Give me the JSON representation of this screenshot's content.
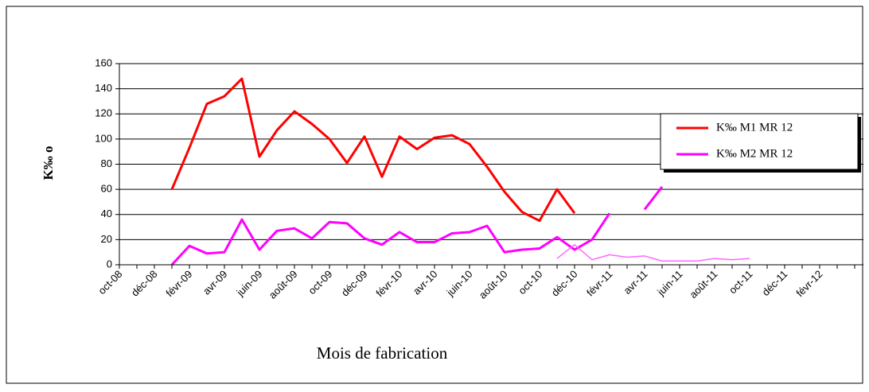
{
  "chart_data": {
    "type": "line",
    "y_label": "K‰ o",
    "x_label": "Mois de fabrication",
    "categories": [
      "oct-08",
      null,
      "déc-08",
      null,
      "févr-09",
      null,
      "avr-09",
      null,
      "juin-09",
      null,
      "août-09",
      null,
      "oct-09",
      null,
      "déc-09",
      null,
      "févr-10",
      null,
      "avr-10",
      null,
      "juin-10",
      null,
      "août-10",
      null,
      "oct-10",
      null,
      "déc-10",
      null,
      "févr-11",
      null,
      "avr-11",
      null,
      "juin-11",
      null,
      "août-11",
      null,
      "oct-11",
      null,
      "déc-11",
      null,
      "févr-12",
      null,
      null
    ],
    "series": [
      {
        "name": "K‰ M1 MR 12",
        "color": "#ff0000",
        "width": 3,
        "values": [
          null,
          null,
          null,
          60,
          93,
          128,
          134,
          148,
          86,
          107,
          122,
          112,
          100,
          81,
          102,
          70,
          102,
          92,
          101,
          103,
          96,
          78,
          58,
          42,
          35,
          60,
          41,
          null,
          null,
          null,
          null,
          null,
          null,
          null,
          null,
          null,
          null,
          null,
          null,
          null,
          null,
          null,
          null
        ]
      },
      {
        "name": "K‰ M2 MR 12",
        "color": "#ff00ff",
        "width": 3,
        "values": [
          null,
          null,
          null,
          0,
          15,
          9,
          10,
          36,
          12,
          27,
          29,
          21,
          34,
          33,
          21,
          16,
          26,
          18,
          18,
          25,
          26,
          31,
          10,
          12,
          13,
          22,
          12,
          20,
          41,
          null,
          44,
          62,
          null,
          null,
          null,
          null,
          null,
          null,
          null,
          null,
          null,
          null,
          null
        ]
      },
      {
        "color": "#ff66ff",
        "width": 1.5,
        "values": [
          null,
          null,
          null,
          null,
          null,
          null,
          null,
          null,
          null,
          null,
          null,
          null,
          null,
          null,
          null,
          null,
          null,
          null,
          null,
          null,
          null,
          null,
          null,
          null,
          null,
          5,
          16,
          4,
          8,
          6,
          7,
          3,
          3,
          3,
          5,
          4,
          5,
          null,
          null,
          null,
          null,
          null,
          null
        ]
      }
    ],
    "ylim": [
      0,
      160
    ],
    "yticks": [
      0,
      20,
      40,
      60,
      80,
      100,
      120,
      140,
      160
    ],
    "grid": true
  }
}
